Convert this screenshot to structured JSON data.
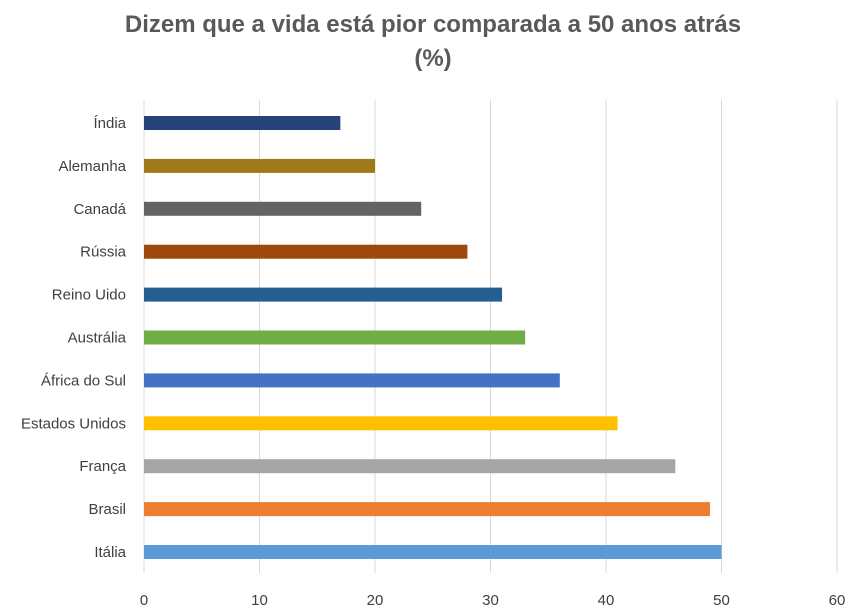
{
  "chart_data": {
    "type": "bar",
    "orientation": "horizontal",
    "title": "Dizem que a vida está pior comparada a 50 anos atrás",
    "subtitle": "(%)",
    "categories": [
      "Índia",
      "Alemanha",
      "Canadá",
      "Rússia",
      "Reino Uido",
      "Austrália",
      "África do Sul",
      "Estados Unidos",
      "França",
      "Brasil",
      "Itália"
    ],
    "values": [
      17,
      20,
      24,
      28,
      31,
      33,
      36,
      41,
      46,
      49,
      50
    ],
    "colors": [
      "#264478",
      "#9E7A1A",
      "#636363",
      "#9E480E",
      "#255E91",
      "#70AD47",
      "#4472C4",
      "#FFC000",
      "#A5A5A5",
      "#ED7D31",
      "#5B9BD5"
    ],
    "xlim": [
      0,
      60
    ],
    "xticks": [
      0,
      10,
      20,
      30,
      40,
      50,
      60
    ],
    "grid": true,
    "legend": "none",
    "xlabel": "",
    "ylabel": ""
  }
}
